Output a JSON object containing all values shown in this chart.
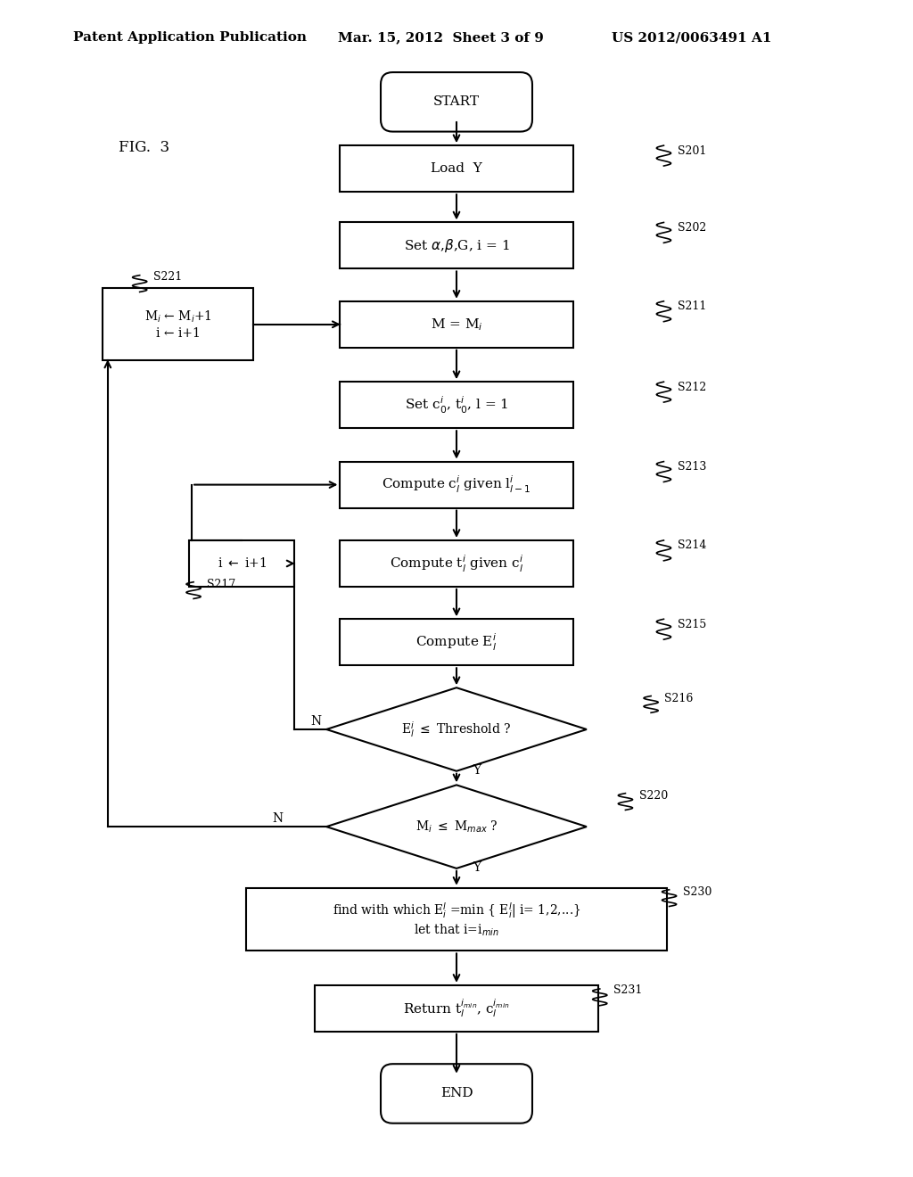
{
  "header_left": "Patent Application Publication",
  "header_mid": "Mar. 15, 2012  Sheet 3 of 9",
  "header_right": "US 2012/0063491 A1",
  "fig_label": "FIG.  3",
  "background": "#ffffff"
}
